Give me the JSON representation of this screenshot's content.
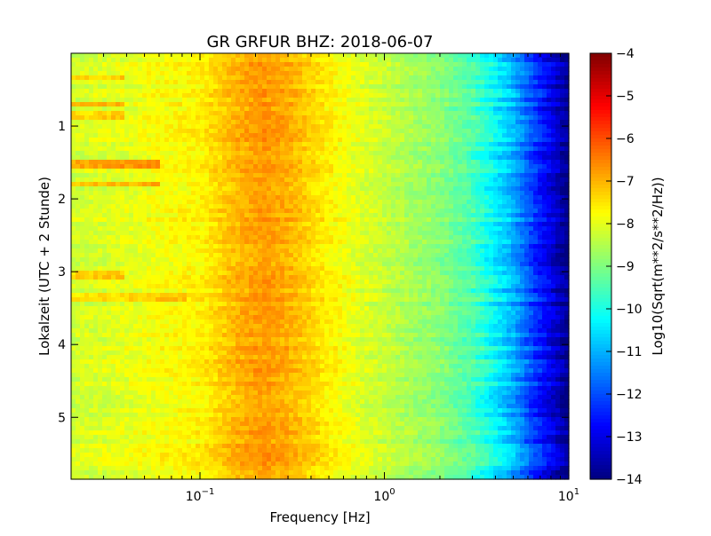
{
  "chart_data": {
    "type": "heatmap",
    "title": "GR GRFUR BHZ: 2018-06-07",
    "xlabel": "Frequency [Hz]",
    "ylabel": "Lokalzeit (UTC + 2 Stunde)",
    "x_scale": "log",
    "xlim": [
      0.02,
      10
    ],
    "ylim": [
      5.85,
      0
    ],
    "x_ticks": [
      {
        "value": 0.1,
        "base": "10",
        "exp": "−1"
      },
      {
        "value": 1,
        "base": "10",
        "exp": "0"
      },
      {
        "value": 10,
        "base": "10",
        "exp": "1"
      }
    ],
    "y_ticks": [
      {
        "value": 1,
        "label": "1"
      },
      {
        "value": 2,
        "label": "2"
      },
      {
        "value": 3,
        "label": "3"
      },
      {
        "value": 4,
        "label": "4"
      },
      {
        "value": 5,
        "label": "5"
      }
    ],
    "colorbar": {
      "label": "Log10(Sqrt(m**2/s**2/Hz))",
      "colormap": "jet",
      "range": [
        -14,
        -4
      ],
      "ticks": [
        {
          "value": -4,
          "label": "−4"
        },
        {
          "value": -5,
          "label": "−5"
        },
        {
          "value": -6,
          "label": "−6"
        },
        {
          "value": -7,
          "label": "−7"
        },
        {
          "value": -8,
          "label": "−8"
        },
        {
          "value": -9,
          "label": "−9"
        },
        {
          "value": -10,
          "label": "−10"
        },
        {
          "value": -11,
          "label": "−11"
        },
        {
          "value": -12,
          "label": "−12"
        },
        {
          "value": -13,
          "label": "−13"
        },
        {
          "value": -14,
          "label": "−14"
        }
      ]
    },
    "frequency_profile": [
      {
        "f": 0.02,
        "v": -8.2
      },
      {
        "f": 0.04,
        "v": -8.0
      },
      {
        "f": 0.06,
        "v": -7.8
      },
      {
        "f": 0.1,
        "v": -7.65
      },
      {
        "f": 0.13,
        "v": -7.3
      },
      {
        "f": 0.16,
        "v": -7.0
      },
      {
        "f": 0.22,
        "v": -6.75
      },
      {
        "f": 0.3,
        "v": -6.95
      },
      {
        "f": 0.45,
        "v": -7.5
      },
      {
        "f": 0.7,
        "v": -8.0
      },
      {
        "f": 1.0,
        "v": -8.3
      },
      {
        "f": 2.0,
        "v": -8.9
      },
      {
        "f": 3.0,
        "v": -9.5
      },
      {
        "f": 4.0,
        "v": -10.3
      },
      {
        "f": 5.0,
        "v": -11.0
      },
      {
        "f": 6.5,
        "v": -12.2
      },
      {
        "f": 8.0,
        "v": -13.0
      },
      {
        "f": 10.0,
        "v": -13.9
      }
    ],
    "time_features": [
      {
        "t": 0.35,
        "f_max": 0.04,
        "delta": 0.8
      },
      {
        "t": 0.68,
        "f_max": 0.04,
        "delta": 0.9
      },
      {
        "t": 0.85,
        "f_max": 0.04,
        "delta": 0.7
      },
      {
        "t": 1.52,
        "f_max": 0.06,
        "delta": 1.2
      },
      {
        "t": 1.78,
        "f_max": 0.06,
        "delta": 1.0
      },
      {
        "t": 3.05,
        "f_max": 0.04,
        "delta": 0.8
      },
      {
        "t": 3.35,
        "f_max": 0.085,
        "delta": 0.5
      }
    ]
  }
}
